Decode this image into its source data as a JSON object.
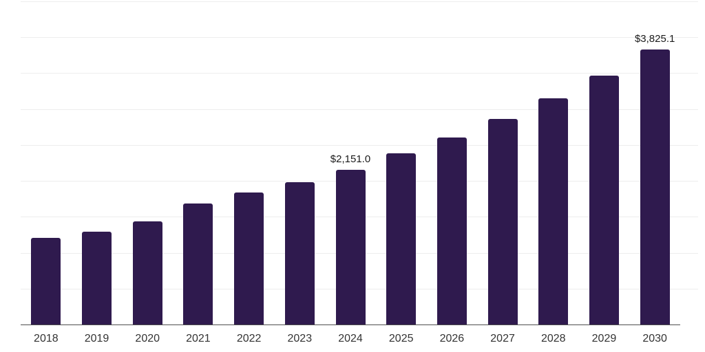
{
  "chart_data": {
    "type": "bar",
    "title": "",
    "xlabel": "",
    "ylabel": "",
    "categories": [
      "2018",
      "2019",
      "2020",
      "2021",
      "2022",
      "2023",
      "2024",
      "2025",
      "2026",
      "2027",
      "2028",
      "2029",
      "2030"
    ],
    "values": [
      1205,
      1290,
      1435,
      1685,
      1840,
      1980,
      2151.0,
      2385,
      2605,
      2860,
      3150,
      3465,
      3825.1
    ],
    "data_labels": {
      "2024": "$2,151.0",
      "2030": "$3,825.1"
    },
    "ylim": [
      0,
      4500
    ],
    "gridline_interval": 500,
    "grid": true,
    "legend_position": "none",
    "y_axis_tick_labels_visible": false,
    "bar_color": "#2F1A4E",
    "axis_color": "#4D4D4D",
    "gridline_color": "#EDEDED",
    "label_color": "#1A1A1A",
    "tick_color": "#333333",
    "background_color": "#FFFFFF"
  }
}
